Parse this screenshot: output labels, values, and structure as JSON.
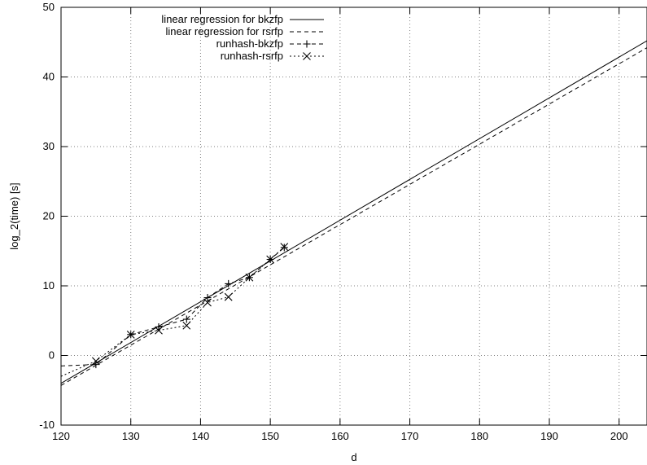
{
  "chart_data": {
    "type": "line",
    "title": "",
    "xlabel": "d",
    "ylabel": "log_2(time) [s]",
    "xlim": [
      120,
      204
    ],
    "ylim": [
      -10,
      50
    ],
    "xticks": [
      120,
      130,
      140,
      150,
      160,
      170,
      180,
      190,
      200
    ],
    "yticks": [
      -10,
      0,
      10,
      20,
      30,
      40,
      50
    ],
    "grid": true,
    "legend_position": "top-left",
    "series": [
      {
        "name": "linear regression for bkzfp",
        "kind": "line",
        "style": "solid",
        "x": [
          120,
          204
        ],
        "y": [
          -4.0,
          45.2
        ]
      },
      {
        "name": "linear regression for rsrfp",
        "kind": "line",
        "style": "dashed",
        "x": [
          120,
          204
        ],
        "y": [
          -4.3,
          44.2
        ]
      },
      {
        "name": "runhash-bkzfp",
        "kind": "linespoints",
        "style": "dashed",
        "marker": "plus",
        "x": [
          120,
          125,
          130,
          134,
          138,
          141,
          144,
          147,
          150,
          152
        ],
        "y": [
          -1.5,
          -1.3,
          3.0,
          4.1,
          5.2,
          8.3,
          10.3,
          11.2,
          13.8,
          15.5
        ]
      },
      {
        "name": "runhash-rsrfp",
        "kind": "linespoints",
        "style": "dotted",
        "marker": "cross",
        "x": [
          120,
          125,
          130,
          134,
          138,
          141,
          144,
          147,
          150,
          152
        ],
        "y": [
          -3.0,
          -0.8,
          3.0,
          3.6,
          4.3,
          7.6,
          8.4,
          11.2,
          13.8,
          15.6
        ]
      }
    ]
  }
}
